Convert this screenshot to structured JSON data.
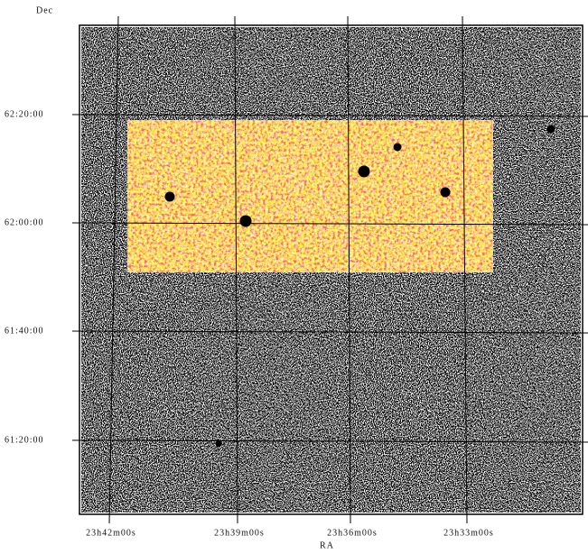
{
  "axes": {
    "y_label": "Dec",
    "x_label": "RA",
    "dec_ticks": [
      "62:20:00",
      "62:00:00",
      "61:40:00",
      "61:20:00"
    ],
    "ra_ticks": [
      "23h42m00s",
      "23h39m00s",
      "23h36m00s",
      "23h33m00s"
    ]
  }
}
